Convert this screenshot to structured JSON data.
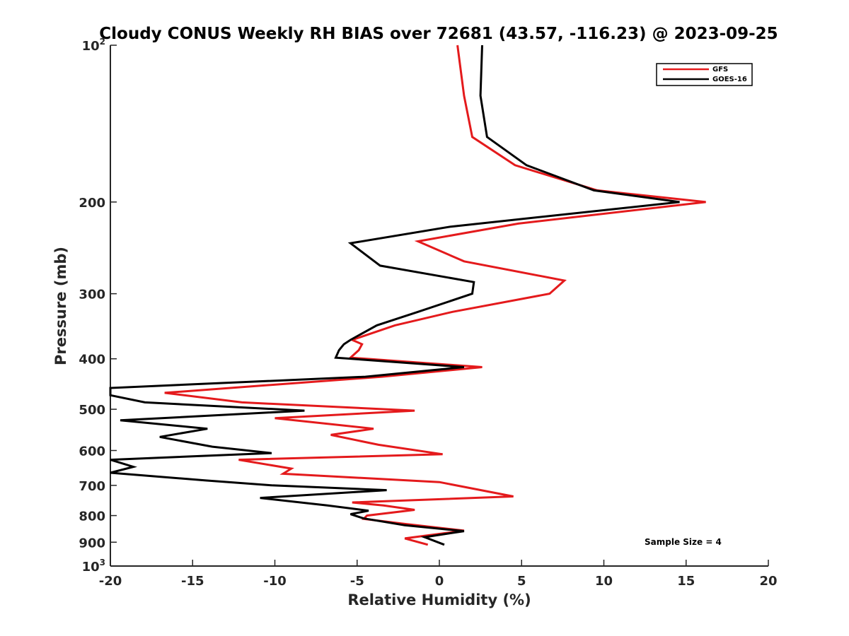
{
  "chart_data": {
    "type": "line",
    "title": "Cloudy CONUS Weekly RH BIAS over 72681 (43.57, -116.23) @ 2023-09-25",
    "xlabel": "Relative Humidity (%)",
    "ylabel": "Pressure (mb)",
    "xlim": [
      -20,
      20
    ],
    "ylim": [
      100,
      1000
    ],
    "yscale": "log",
    "yreversed": true,
    "grid": false,
    "legend_position": "top-right",
    "xticks": [
      -20,
      -15,
      -10,
      -5,
      0,
      5,
      10,
      15,
      20
    ],
    "xtick_labels": [
      "-20",
      "-15",
      "-10",
      "-5",
      "0",
      "5",
      "10",
      "15",
      "20"
    ],
    "yticks": [
      {
        "value": 100,
        "base": "10",
        "exp": "2"
      },
      {
        "value": 200,
        "label": "200"
      },
      {
        "value": 300,
        "label": "300"
      },
      {
        "value": 400,
        "label": "400"
      },
      {
        "value": 500,
        "label": "500"
      },
      {
        "value": 600,
        "label": "600"
      },
      {
        "value": 700,
        "label": "700"
      },
      {
        "value": 800,
        "label": "800"
      },
      {
        "value": 900,
        "label": "900"
      },
      {
        "value": 1000,
        "base": "10",
        "exp": "3"
      }
    ],
    "series": [
      {
        "name": "GFS",
        "color": "#e41a1c",
        "x": [
          1.1,
          1.5,
          2.0,
          4.6,
          9.6,
          16.2,
          4.8,
          -1.3,
          1.5,
          7.6,
          6.7,
          0.8,
          -2.7,
          -5.3,
          -4.7,
          -4.9,
          -5.4,
          2.6,
          -3.5,
          -16.7,
          -12.0,
          -1.5,
          -10.0,
          -4.0,
          -6.6,
          -3.7,
          0.2,
          -12.2,
          -9.0,
          -9.5,
          0.0,
          4.5,
          -5.3,
          -3.4,
          -1.5,
          -4.4,
          -4.6,
          -2.1,
          1.5,
          -2.1,
          -0.7
        ],
        "y": [
          100,
          125,
          150,
          170,
          190,
          200,
          220,
          238,
          260,
          283,
          300,
          325,
          345,
          368,
          375,
          385,
          398,
          415,
          433,
          465,
          485,
          503,
          520,
          545,
          560,
          585,
          610,
          625,
          650,
          665,
          690,
          735,
          755,
          765,
          780,
          800,
          812,
          830,
          855,
          885,
          910
        ]
      },
      {
        "name": "GOES-16",
        "color": "#000000",
        "x": [
          2.6,
          2.5,
          2.9,
          5.3,
          9.4,
          14.6,
          0.7,
          -5.4,
          -3.6,
          2.1,
          2.0,
          -1.3,
          -3.8,
          -5.4,
          -5.8,
          -6.1,
          -6.3,
          1.5,
          -4.5,
          -20.0,
          -20.0,
          -17.9,
          -8.2,
          -19.4,
          -14.1,
          -17.0,
          -13.8,
          -10.2,
          -20.0,
          -18.6,
          -20.0,
          -14.2,
          -10.2,
          -3.2,
          -10.9,
          -6.8,
          -4.3,
          -5.4,
          -4.6,
          -2.1,
          1.5,
          -0.9,
          0.3
        ],
        "y": [
          100,
          125,
          150,
          170,
          190,
          200,
          223,
          240,
          265,
          285,
          300,
          325,
          345,
          368,
          375,
          385,
          398,
          415,
          433,
          455,
          470,
          485,
          503,
          525,
          545,
          565,
          590,
          607,
          625,
          645,
          662,
          685,
          700,
          715,
          740,
          765,
          783,
          795,
          810,
          835,
          857,
          880,
          910
        ]
      }
    ],
    "annotation": "Sample Size = 4"
  }
}
